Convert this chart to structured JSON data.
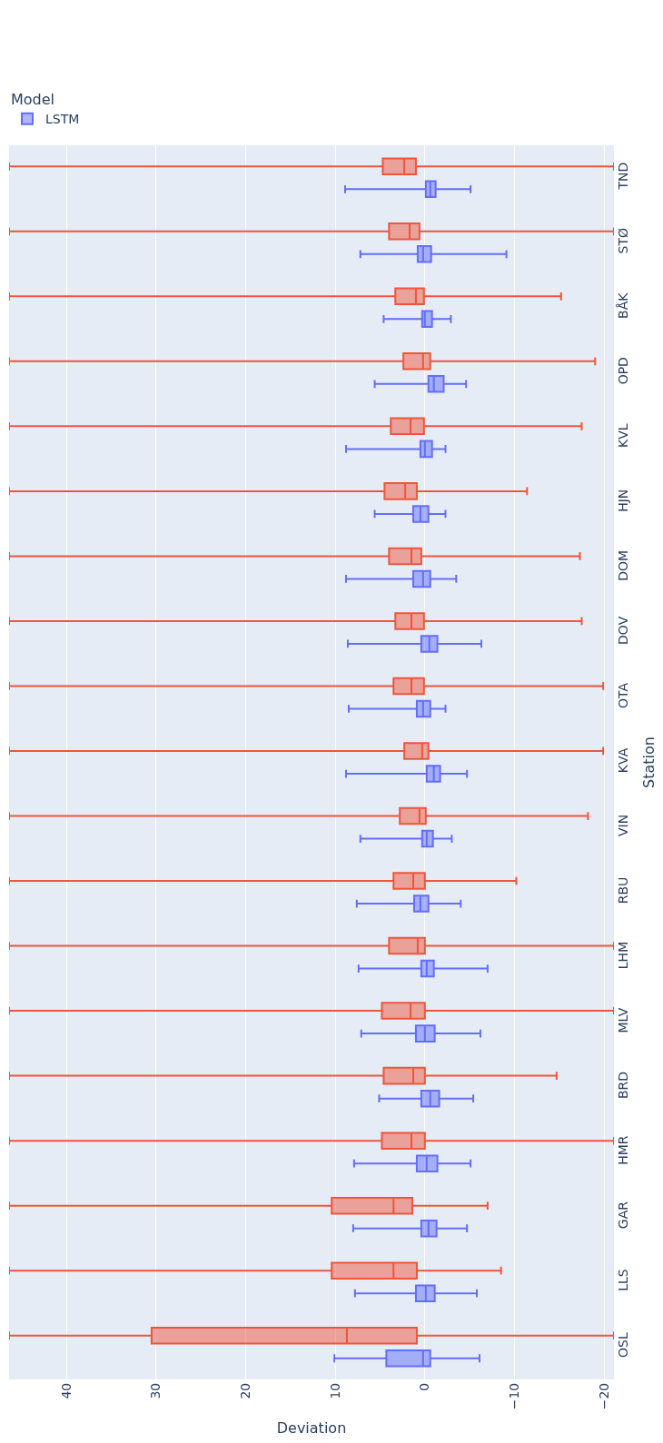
{
  "chart_data": {
    "type": "box",
    "orientation": "horizontal",
    "xlabel": "Deviation",
    "ylabel": "Station",
    "legend_title": "Model",
    "legend": "top",
    "grid": "x",
    "categories": [
      "TND",
      "STØ",
      "BÅK",
      "OPD",
      "KVL",
      "HJN",
      "DOM",
      "DOV",
      "OTA",
      "KVA",
      "VIN",
      "RBU",
      "LHM",
      "MLV",
      "BRD",
      "HMR",
      "GAR",
      "LLS",
      "OSL"
    ],
    "xlim": [
      46.4,
      -21.1
    ],
    "xticks": [
      40,
      30,
      20,
      10,
      0,
      {
        "value": -10,
        "label": "−10"
      },
      {
        "value": -20,
        "label": "−20"
      }
    ],
    "series": [
      {
        "name": "LSTM",
        "color": "#636efa",
        "boxes": [
          {
            "low": -5.1,
            "q1": -1.2,
            "median": -0.6,
            "q3": -0.1,
            "high": 8.9
          },
          {
            "low": -9.1,
            "q1": -0.7,
            "median": 0.2,
            "q3": 0.8,
            "high": 7.2
          },
          {
            "low": -2.9,
            "q1": -0.8,
            "median": 0,
            "q3": 0.3,
            "high": 4.6
          },
          {
            "low": -4.6,
            "q1": -2.1,
            "median": -1.0,
            "q3": -0.4,
            "high": 5.6
          },
          {
            "low": -2.3,
            "q1": -0.8,
            "median": 0,
            "q3": 0.5,
            "high": 8.8
          },
          {
            "low": -2.3,
            "q1": -0.4,
            "median": 0.5,
            "q3": 1.3,
            "high": 5.6
          },
          {
            "low": -3.5,
            "q1": -0.6,
            "median": 0.2,
            "q3": 1.3,
            "high": 8.8
          },
          {
            "low": -6.3,
            "q1": -1.4,
            "median": -0.5,
            "q3": 0.4,
            "high": 8.6
          },
          {
            "low": -2.3,
            "q1": -0.6,
            "median": 0.2,
            "q3": 0.9,
            "high": 8.5
          },
          {
            "low": -4.7,
            "q1": -1.7,
            "median": -1.0,
            "q3": -0.2,
            "high": 8.8
          },
          {
            "low": -3.0,
            "q1": -0.9,
            "median": -0.2,
            "q3": 0.3,
            "high": 7.2
          },
          {
            "low": -4.0,
            "q1": -0.4,
            "median": 0.5,
            "q3": 1.2,
            "high": 7.6
          },
          {
            "low": -7.0,
            "q1": -1.0,
            "median": -0.2,
            "q3": 0.4,
            "high": 7.4
          },
          {
            "low": -6.2,
            "q1": -1.1,
            "median": 0,
            "q3": 1.0,
            "high": 7.1
          },
          {
            "low": -5.4,
            "q1": -1.6,
            "median": -0.6,
            "q3": 0.4,
            "high": 5.1
          },
          {
            "low": -5.1,
            "q1": -1.4,
            "median": -0.2,
            "q3": 0.9,
            "high": 7.9
          },
          {
            "low": -4.7,
            "q1": -1.3,
            "median": -0.4,
            "q3": 0.4,
            "high": 8.0
          },
          {
            "low": -5.8,
            "q1": -1.1,
            "median": -0.1,
            "q3": 1.0,
            "high": 7.8
          },
          {
            "low": -6.1,
            "q1": -0.6,
            "median": 0.2,
            "q3": 4.3,
            "high": 10.1
          }
        ]
      },
      {
        "color": "#ef553b",
        "boxes": [
          {
            "low": -21.1,
            "q1": 1.0,
            "median": 2.3,
            "q3": 4.7,
            "high": 46.4
          },
          {
            "low": -21.1,
            "q1": 0.6,
            "median": 1.7,
            "q3": 4.0,
            "high": 46.4
          },
          {
            "low": -15.2,
            "q1": 0.1,
            "median": 1.0,
            "q3": 3.3,
            "high": 46.4
          },
          {
            "low": -19.0,
            "q1": -0.6,
            "median": 0.2,
            "q3": 2.4,
            "high": 46.4
          },
          {
            "low": -17.5,
            "q1": 0.1,
            "median": 1.6,
            "q3": 3.8,
            "high": 46.4
          },
          {
            "low": -11.4,
            "q1": 0.9,
            "median": 2.2,
            "q3": 4.5,
            "high": 46.4
          },
          {
            "low": -17.3,
            "q1": 0.4,
            "median": 1.5,
            "q3": 4.0,
            "high": 46.4
          },
          {
            "low": -17.5,
            "q1": 0.1,
            "median": 1.5,
            "q3": 3.3,
            "high": 46.4
          },
          {
            "low": -19.9,
            "q1": 0.1,
            "median": 1.5,
            "q3": 3.5,
            "high": 46.4
          },
          {
            "low": -19.9,
            "q1": -0.4,
            "median": 0.3,
            "q3": 2.3,
            "high": 46.4
          },
          {
            "low": -18.2,
            "q1": -0.1,
            "median": 0.6,
            "q3": 2.8,
            "high": 46.4
          },
          {
            "low": -10.2,
            "q1": 0,
            "median": 1.3,
            "q3": 3.5,
            "high": 46.4
          },
          {
            "low": -21.1,
            "q1": 0,
            "median": 0.8,
            "q3": 4.0,
            "high": 46.4
          },
          {
            "low": -21.1,
            "q1": 0,
            "median": 1.6,
            "q3": 4.8,
            "high": 46.4
          },
          {
            "low": -14.7,
            "q1": 0,
            "median": 1.3,
            "q3": 4.6,
            "high": 46.4
          },
          {
            "low": -21.1,
            "q1": 0,
            "median": 1.5,
            "q3": 4.8,
            "high": 46.4
          },
          {
            "low": -7.0,
            "q1": 1.4,
            "median": 3.5,
            "q3": 10.4,
            "high": 46.4
          },
          {
            "low": -8.5,
            "q1": 0.9,
            "median": 3.5,
            "q3": 10.4,
            "high": 46.4
          },
          {
            "low": -21.1,
            "q1": 0.9,
            "median": 8.7,
            "q3": 30.5,
            "high": 46.4
          }
        ]
      }
    ]
  }
}
